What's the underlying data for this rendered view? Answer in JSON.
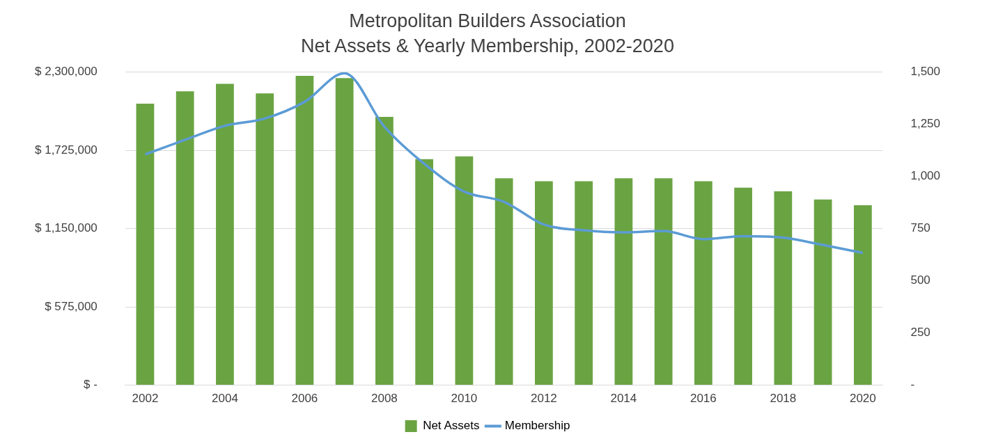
{
  "chart_data": {
    "type": "bar",
    "title": "Metropolitan Builders Association",
    "subtitle": "Net Assets & Yearly Membership, 2002-2020",
    "categories": [
      "2002",
      null,
      "2004",
      null,
      "2006",
      null,
      "2008",
      null,
      "2010",
      null,
      "2012",
      null,
      "2014",
      null,
      "2016",
      null,
      "2018",
      null,
      "2020"
    ],
    "series": [
      {
        "name": "Net Assets",
        "color": "#6aa442",
        "values": [
          2069000,
          2160000,
          2214000,
          2144000,
          2273000,
          2257000,
          1972000,
          1661000,
          1682000,
          1521000,
          1499000,
          1499000,
          1521000,
          1521000,
          1499000,
          1451000,
          1424000,
          1365000,
          1322000
        ]
      },
      {
        "name": "Membership",
        "type": "line",
        "axis": "y2",
        "color": "#5b9bd5",
        "values": [
          1106,
          1176,
          1243,
          1278,
          1358,
          1495,
          1239,
          1061,
          928,
          879,
          770,
          742,
          732,
          739,
          700,
          714,
          707,
          672,
          634
        ]
      }
    ],
    "ylim": [
      0,
      2300000
    ],
    "yticks": [
      {
        "value": 0,
        "label": "$ -"
      },
      {
        "value": 575000,
        "label": "$ 575,000"
      },
      {
        "value": 1150000,
        "label": "$ 1,150,000"
      },
      {
        "value": 1725000,
        "label": "$ 1,725,000"
      },
      {
        "value": 2300000,
        "label": "$ 2,300,000"
      }
    ],
    "y2lim": [
      0,
      1500
    ],
    "y2ticks": [
      {
        "value": 0,
        "label": "-"
      },
      {
        "value": 250,
        "label": "250"
      },
      {
        "value": 500,
        "label": "500"
      },
      {
        "value": 750,
        "label": "750"
      },
      {
        "value": 1000,
        "label": "1,000"
      },
      {
        "value": 1250,
        "label": "1,250"
      },
      {
        "value": 1500,
        "label": "1,500"
      }
    ],
    "grid": "y",
    "legend": "bottom",
    "marker": "none",
    "line_style": "solid"
  }
}
